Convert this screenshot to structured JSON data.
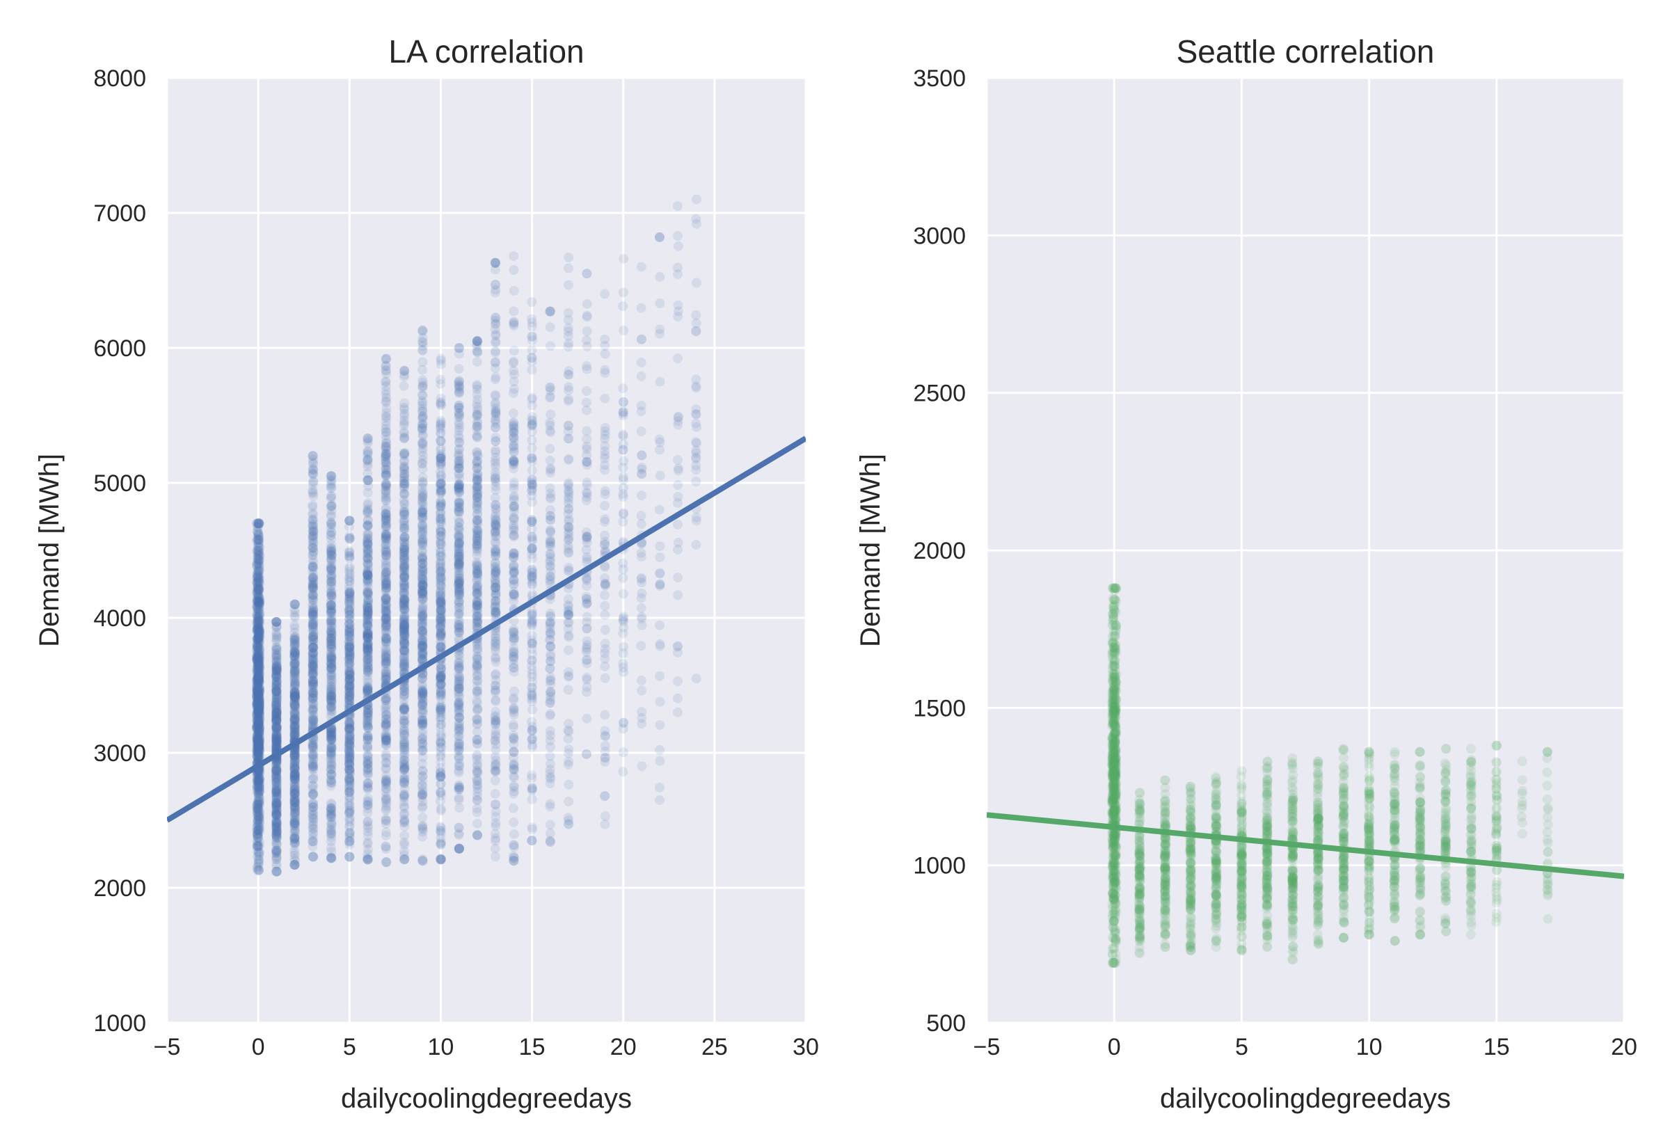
{
  "colors": {
    "plot_background": "#eaeaf2",
    "grid": "#ffffff",
    "la_series": "#4c72b0",
    "seattle_series": "#55a868"
  },
  "chart_data": [
    {
      "type": "scatter",
      "title": "LA correlation",
      "xlabel": "dailycoolingdegreedays",
      "ylabel": "Demand [MWh]",
      "xlim": [
        -5,
        30
      ],
      "ylim": [
        1000,
        8000
      ],
      "xticks": [
        -5,
        0,
        5,
        10,
        15,
        20,
        25,
        30
      ],
      "yticks": [
        1000,
        2000,
        3000,
        4000,
        5000,
        6000,
        7000,
        8000
      ],
      "xtick_labels": [
        "−5",
        "0",
        "5",
        "10",
        "15",
        "20",
        "25",
        "30"
      ],
      "ytick_labels": [
        "1000",
        "2000",
        "3000",
        "4000",
        "5000",
        "6000",
        "7000",
        "8000"
      ],
      "grid": true,
      "color": "#4c72b0",
      "columns": [
        {
          "x": 0,
          "min": 2130,
          "max": 4700
        },
        {
          "x": 1,
          "min": 2120,
          "max": 3970
        },
        {
          "x": 2,
          "min": 2170,
          "max": 4100
        },
        {
          "x": 3,
          "min": 2230,
          "max": 5200
        },
        {
          "x": 4,
          "min": 2220,
          "max": 5050
        },
        {
          "x": 5,
          "min": 2230,
          "max": 4720
        },
        {
          "x": 6,
          "min": 2210,
          "max": 5330
        },
        {
          "x": 7,
          "min": 2190,
          "max": 5920
        },
        {
          "x": 8,
          "min": 2210,
          "max": 5830
        },
        {
          "x": 9,
          "min": 2200,
          "max": 6130
        },
        {
          "x": 10,
          "min": 2210,
          "max": 5920
        },
        {
          "x": 11,
          "min": 2290,
          "max": 6000
        },
        {
          "x": 12,
          "min": 2390,
          "max": 6050
        },
        {
          "x": 13,
          "min": 2230,
          "max": 6630
        },
        {
          "x": 14,
          "min": 2200,
          "max": 6680
        },
        {
          "x": 15,
          "min": 2350,
          "max": 6340
        },
        {
          "x": 16,
          "min": 2340,
          "max": 6270
        },
        {
          "x": 17,
          "min": 2470,
          "max": 6670
        },
        {
          "x": 18,
          "min": 2990,
          "max": 6550
        },
        {
          "x": 19,
          "min": 2470,
          "max": 6400
        },
        {
          "x": 20,
          "min": 2860,
          "max": 6660
        },
        {
          "x": 21,
          "min": 2900,
          "max": 6600
        },
        {
          "x": 22,
          "min": 2650,
          "max": 6820
        },
        {
          "x": 23,
          "min": 3300,
          "max": 7050
        },
        {
          "x": 24,
          "min": 3550,
          "max": 7100
        }
      ],
      "regression": {
        "x": [
          -5,
          30
        ],
        "y": [
          2500,
          5330
        ]
      }
    },
    {
      "type": "scatter",
      "title": "Seattle correlation",
      "xlabel": "dailycoolingdegreedays",
      "ylabel": "Demand [MWh]",
      "xlim": [
        -5,
        20
      ],
      "ylim": [
        500,
        3500
      ],
      "xticks": [
        -5,
        0,
        5,
        10,
        15,
        20
      ],
      "yticks": [
        500,
        1000,
        1500,
        2000,
        2500,
        3000,
        3500
      ],
      "xtick_labels": [
        "−5",
        "0",
        "5",
        "10",
        "15",
        "20"
      ],
      "ytick_labels": [
        "500",
        "1000",
        "1500",
        "2000",
        "2500",
        "3000",
        "3500"
      ],
      "grid": true,
      "color": "#55a868",
      "columns": [
        {
          "x": 0,
          "min": 690,
          "max": 1880
        },
        {
          "x": 1,
          "min": 720,
          "max": 1230
        },
        {
          "x": 2,
          "min": 740,
          "max": 1270
        },
        {
          "x": 3,
          "min": 730,
          "max": 1250
        },
        {
          "x": 4,
          "min": 740,
          "max": 1280
        },
        {
          "x": 5,
          "min": 730,
          "max": 1300
        },
        {
          "x": 6,
          "min": 740,
          "max": 1330
        },
        {
          "x": 7,
          "min": 700,
          "max": 1340
        },
        {
          "x": 8,
          "min": 750,
          "max": 1330
        },
        {
          "x": 9,
          "min": 770,
          "max": 1370
        },
        {
          "x": 10,
          "min": 780,
          "max": 1360
        },
        {
          "x": 11,
          "min": 760,
          "max": 1360
        },
        {
          "x": 12,
          "min": 780,
          "max": 1360
        },
        {
          "x": 13,
          "min": 790,
          "max": 1370
        },
        {
          "x": 14,
          "min": 780,
          "max": 1370
        },
        {
          "x": 15,
          "min": 820,
          "max": 1380
        },
        {
          "x": 16,
          "min": 1100,
          "max": 1330
        },
        {
          "x": 17,
          "min": 830,
          "max": 1360
        }
      ],
      "regression": {
        "x": [
          -5,
          20
        ],
        "y": [
          1160,
          965
        ]
      }
    }
  ]
}
